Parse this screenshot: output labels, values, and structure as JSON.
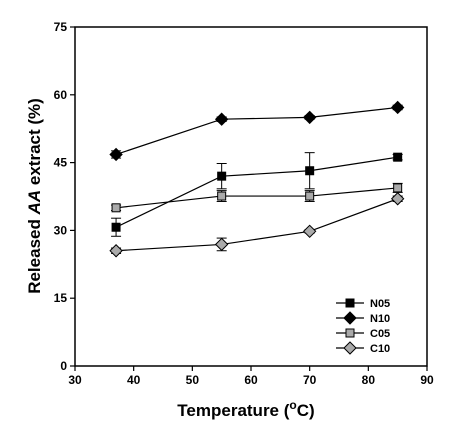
{
  "chart_data": {
    "type": "line",
    "xlabel": {
      "prefix": "Temperature (",
      "sup": "o",
      "suffix": "C)"
    },
    "ylabel": {
      "prefix": "Released ",
      "italic": "AA",
      "suffix": " extract (%)"
    },
    "xlim": [
      30,
      90
    ],
    "ylim": [
      0,
      75
    ],
    "xticks": [
      "30",
      "40",
      "50",
      "60",
      "70",
      "80",
      "90"
    ],
    "yticks": [
      "0",
      "15",
      "30",
      "45",
      "60",
      "75"
    ],
    "grid": false,
    "legend_position": "bottom-right",
    "series": [
      {
        "name": "N05",
        "marker": "square",
        "fill": "#000000",
        "x": [
          37,
          55,
          70,
          85
        ],
        "y": [
          30.7,
          42.0,
          43.2,
          46.2
        ],
        "err": [
          2.0,
          2.8,
          4.0,
          0.6
        ]
      },
      {
        "name": "N10",
        "marker": "diamond",
        "fill": "#000000",
        "x": [
          37,
          55,
          70,
          85
        ],
        "y": [
          46.8,
          54.6,
          55.0,
          57.2
        ],
        "err": [
          0.8,
          0.5,
          0.4,
          0.5
        ]
      },
      {
        "name": "C05",
        "marker": "square",
        "fill": "#aaaaaa",
        "x": [
          37,
          55,
          70,
          85
        ],
        "y": [
          35.0,
          37.6,
          37.6,
          39.4
        ],
        "err": [
          0.6,
          1.2,
          1.2,
          1.0
        ]
      },
      {
        "name": "C10",
        "marker": "diamond",
        "fill": "#aaaaaa",
        "x": [
          37,
          55,
          70,
          85
        ],
        "y": [
          25.5,
          26.9,
          29.8,
          37.0
        ],
        "err": [
          0.6,
          1.4,
          0.4,
          0.6
        ]
      }
    ]
  }
}
